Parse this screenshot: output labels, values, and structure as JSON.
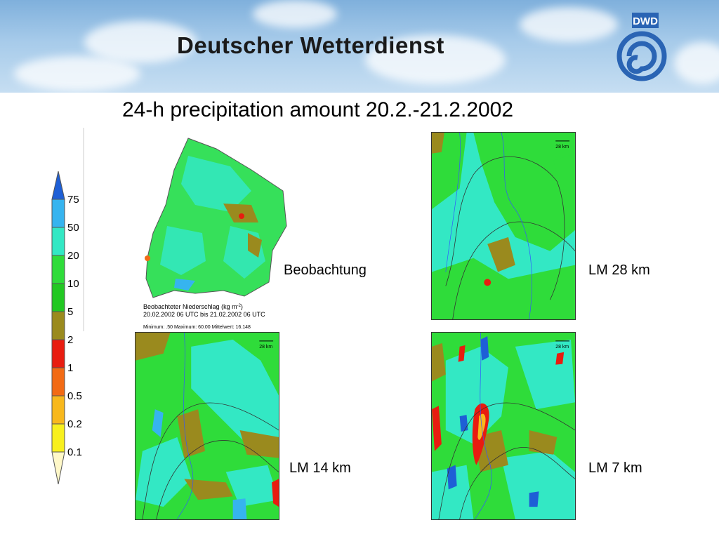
{
  "banner": {
    "title": "Deutscher Wetterdienst",
    "logo_text": "DWD"
  },
  "page_title": "24-h precipitation amount 20.2.-21.2.2002",
  "legend": {
    "labels": [
      "75",
      "50",
      "20",
      "10",
      "5",
      "2",
      "1",
      "0.5",
      "0.2",
      "0.1"
    ],
    "colors": [
      "#1e5fd6",
      "#36b4ef",
      "#33e8c4",
      "#2fdc3a",
      "#22c822",
      "#9a8a1e",
      "#e81c10",
      "#f26a14",
      "#f8b81c",
      "#f8f01e"
    ]
  },
  "observation": {
    "caption": "Beobachtung",
    "line1": "Beobachteter Niederschlag (kg m",
    "sup": "-2",
    "line1_end": ")",
    "line2": "20.02.2002 06 UTC bis 21.02.2002 06 UTC",
    "stats": "Minimum: .50  Maximum: 60.00  Mittelwert: 16.148"
  },
  "models": [
    {
      "caption": "LM 28 km",
      "scale": "28 km"
    },
    {
      "caption": "LM 14 km",
      "scale": "28 km"
    },
    {
      "caption": "LM 7 km",
      "scale": "28 km"
    }
  ],
  "colors": {
    "banner_sky": "#a7cbea",
    "logo_blue": "#2a64b4"
  }
}
